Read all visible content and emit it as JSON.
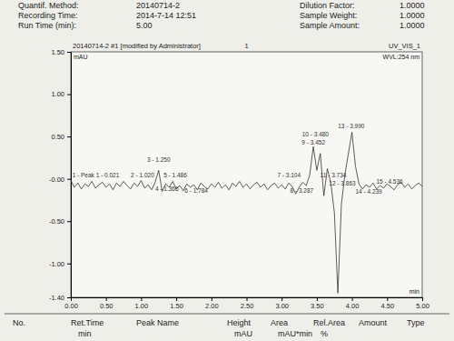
{
  "header": {
    "left": [
      {
        "label": "Quantif. Method:",
        "value": "20140714-2"
      },
      {
        "label": "Recording Time:",
        "value": "2014-7-14 12:51"
      },
      {
        "label": "Run Time (min):",
        "value": "5.00"
      }
    ],
    "right": [
      {
        "label": "Dilution Factor:",
        "value": "1.0000"
      },
      {
        "label": "Sample Weight:",
        "value": "1.0000"
      },
      {
        "label": "Sample Amount:",
        "value": "1.0000"
      }
    ]
  },
  "chart_data": {
    "type": "line",
    "title": "20140714-2 #1 [modified by Administrator]",
    "title_center": "1",
    "channel": "UV_VIS_1",
    "wavelength": "WVL:254 nm",
    "y_label": "mAU",
    "x_label": "min",
    "color": "#333333",
    "grid": false,
    "x": [
      0.0,
      0.05,
      0.1,
      0.15,
      0.2,
      0.25,
      0.3,
      0.35,
      0.4,
      0.45,
      0.5,
      0.55,
      0.6,
      0.65,
      0.7,
      0.75,
      0.8,
      0.85,
      0.9,
      0.95,
      1.0,
      1.05,
      1.1,
      1.15,
      1.2,
      1.25,
      1.3,
      1.35,
      1.4,
      1.45,
      1.5,
      1.55,
      1.6,
      1.65,
      1.7,
      1.75,
      1.8,
      1.85,
      1.9,
      1.95,
      2.0,
      2.05,
      2.1,
      2.15,
      2.2,
      2.25,
      2.3,
      2.35,
      2.4,
      2.45,
      2.5,
      2.55,
      2.6,
      2.65,
      2.7,
      2.75,
      2.8,
      2.85,
      2.9,
      2.95,
      3.0,
      3.05,
      3.1,
      3.15,
      3.2,
      3.25,
      3.3,
      3.35,
      3.4,
      3.45,
      3.5,
      3.55,
      3.6,
      3.65,
      3.7,
      3.75,
      3.8,
      3.85,
      3.9,
      3.95,
      4.0,
      4.05,
      4.1,
      4.15,
      4.2,
      4.25,
      4.3,
      4.35,
      4.4,
      4.45,
      4.5,
      4.55,
      4.6,
      4.65,
      4.7,
      4.75,
      4.8,
      4.85,
      4.9,
      4.95,
      5.0
    ],
    "values": [
      -0.02,
      -0.1,
      -0.05,
      -0.12,
      -0.06,
      -0.09,
      -0.03,
      -0.11,
      -0.07,
      -0.04,
      -0.1,
      -0.06,
      -0.13,
      -0.05,
      -0.09,
      -0.03,
      -0.08,
      -0.12,
      -0.05,
      -0.09,
      -0.02,
      -0.11,
      -0.07,
      -0.13,
      -0.04,
      0.1,
      -0.15,
      -0.06,
      -0.1,
      -0.03,
      -0.12,
      -0.08,
      -0.14,
      -0.06,
      -0.1,
      -0.07,
      -0.13,
      -0.05,
      -0.09,
      -0.12,
      -0.06,
      -0.1,
      -0.04,
      -0.11,
      -0.07,
      -0.13,
      -0.05,
      -0.09,
      -0.03,
      -0.1,
      -0.06,
      -0.12,
      -0.07,
      -0.04,
      -0.1,
      -0.06,
      -0.13,
      -0.08,
      -0.05,
      -0.11,
      -0.07,
      -0.12,
      -0.05,
      -0.09,
      -0.18,
      -0.1,
      -0.04,
      -0.08,
      0.05,
      0.38,
      0.1,
      0.3,
      -0.2,
      0.12,
      -0.05,
      -0.4,
      -1.35,
      -0.3,
      0.05,
      0.3,
      0.55,
      0.15,
      -0.06,
      -0.12,
      -0.07,
      -0.1,
      -0.05,
      -0.12,
      -0.08,
      -0.11,
      -0.06,
      -0.09,
      -0.13,
      -0.07,
      -0.04,
      -0.1,
      -0.06,
      -0.12,
      -0.08,
      -0.05,
      -0.09
    ],
    "xlim": [
      0,
      5
    ],
    "ylim": [
      -1.4,
      1.5
    ],
    "xticks": [
      {
        "value": 0,
        "label": "0.00"
      },
      {
        "value": 0.5,
        "label": "0.50"
      },
      {
        "value": 1,
        "label": "1.00"
      },
      {
        "value": 1.5,
        "label": "1.50"
      },
      {
        "value": 2,
        "label": "2.00"
      },
      {
        "value": 2.5,
        "label": "2.50"
      },
      {
        "value": 3,
        "label": "3.00"
      },
      {
        "value": 3.5,
        "label": "3.50"
      },
      {
        "value": 4,
        "label": "4.00"
      },
      {
        "value": 4.5,
        "label": "4.50"
      },
      {
        "value": 5,
        "label": "5.00"
      }
    ],
    "yticks": [
      {
        "value": -1.4,
        "label": "-1.40"
      },
      {
        "value": -1,
        "label": "-1.00"
      },
      {
        "value": -0.5,
        "label": "-0.50"
      },
      {
        "value": 0,
        "label": "-0.00"
      },
      {
        "value": 0.5,
        "label": "0.50"
      },
      {
        "value": 1,
        "label": "1.00"
      },
      {
        "value": 1.5,
        "label": "1.50"
      }
    ],
    "annotations": [
      {
        "text": "1 - Peak 1 - 0.021",
        "x": 0.021,
        "y": 0.02
      },
      {
        "text": "2 - 1.020",
        "x": 1.02,
        "y": 0.02
      },
      {
        "text": "3 - 1.250",
        "x": 1.25,
        "y": 0.2
      },
      {
        "text": "4 - 1.366",
        "x": 1.366,
        "y": -0.14
      },
      {
        "text": "5 - 1.486",
        "x": 1.486,
        "y": 0.02
      },
      {
        "text": "6 - 1.784",
        "x": 1.784,
        "y": -0.16
      },
      {
        "text": "7 - 3.104",
        "x": 3.104,
        "y": 0.02
      },
      {
        "text": "8 - 3.287",
        "x": 3.287,
        "y": -0.16
      },
      {
        "text": "9 - 3.452",
        "x": 3.452,
        "y": 0.4
      },
      {
        "text": "10 - 3.480",
        "x": 3.48,
        "y": 0.5
      },
      {
        "text": "11 - 3.734",
        "x": 3.734,
        "y": 0.02
      },
      {
        "text": "12 - 3.863",
        "x": 3.863,
        "y": -0.08
      },
      {
        "text": "13 - 3.990",
        "x": 3.99,
        "y": 0.6
      },
      {
        "text": "14 - 4.239",
        "x": 4.239,
        "y": -0.18
      },
      {
        "text": "15 - 4.536",
        "x": 4.536,
        "y": -0.06
      }
    ]
  },
  "table_header": {
    "columns": [
      {
        "name": "No."
      },
      {
        "name": "Ret.Time",
        "unit": "min"
      },
      {
        "name": "Peak Name"
      },
      {
        "name": "Height",
        "unit": "mAU"
      },
      {
        "name": "Area",
        "unit": "mAU*min"
      },
      {
        "name": "Rel.Area",
        "unit": "%"
      },
      {
        "name": "Amount"
      },
      {
        "name": "Type"
      }
    ]
  }
}
